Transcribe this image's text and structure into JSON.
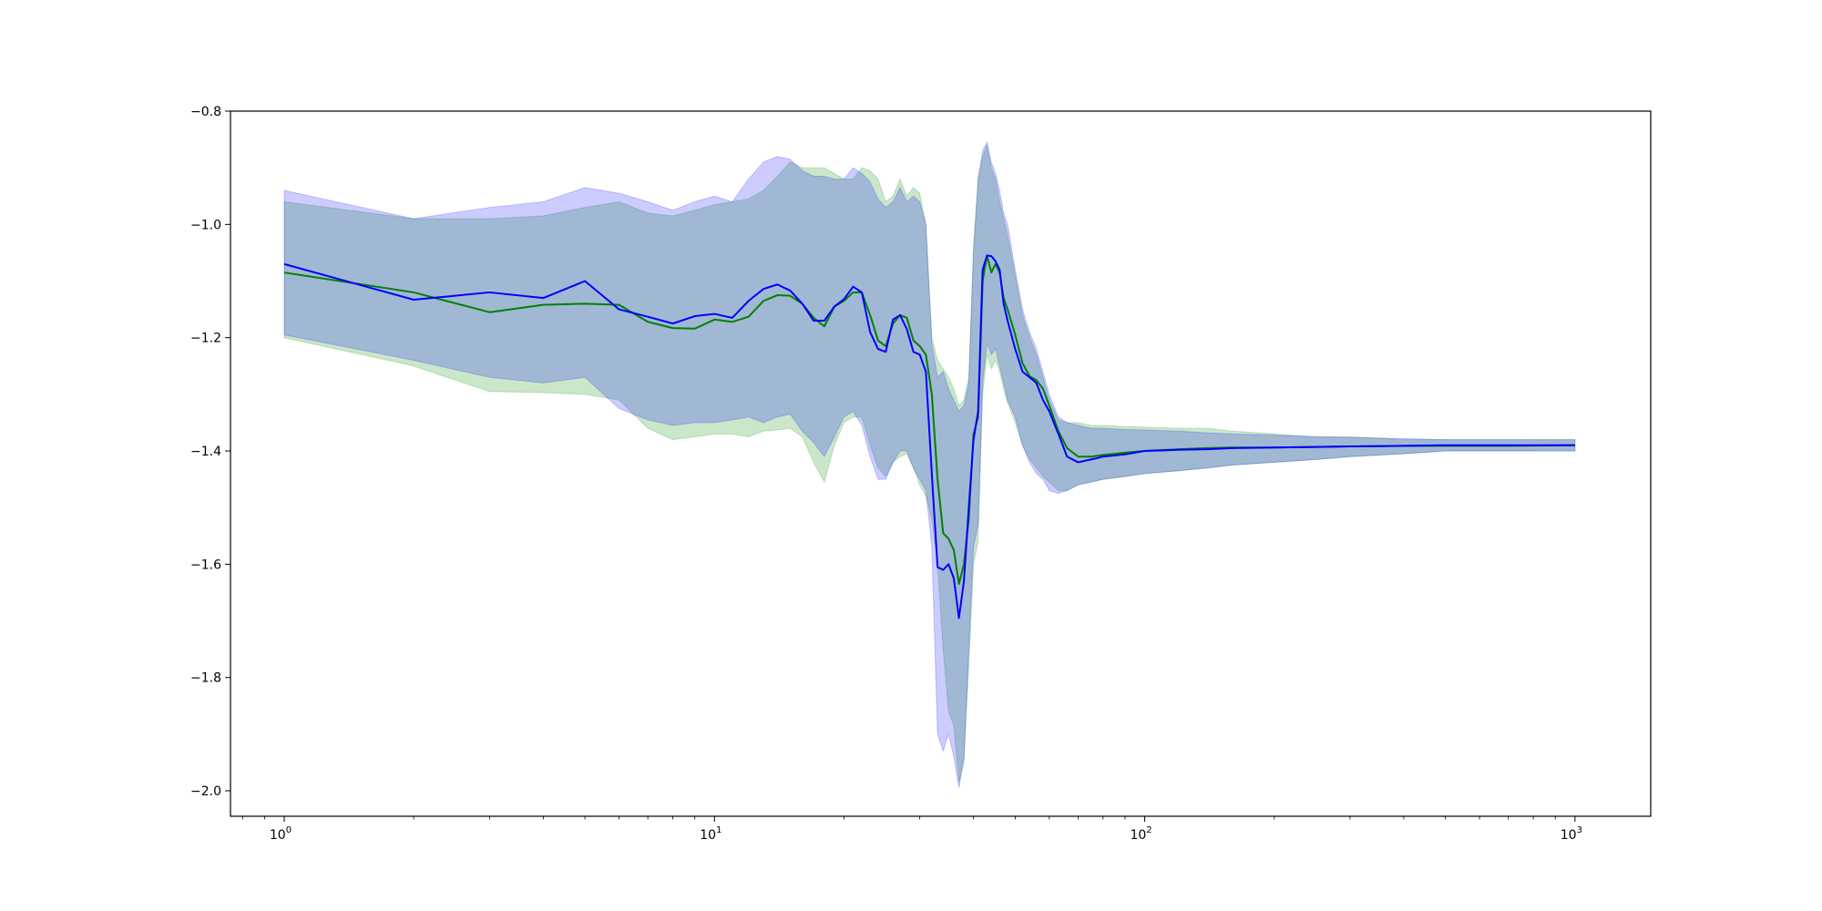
{
  "chart_data": {
    "type": "line",
    "title": "",
    "xlabel": "",
    "ylabel": "",
    "xscale": "log",
    "xlim": [
      0.75,
      1500
    ],
    "ylim": [
      -2.045,
      -0.8
    ],
    "grid": false,
    "legend": "none",
    "x_ticks": [
      {
        "value": 1,
        "base": "10",
        "exp": "0"
      },
      {
        "value": 10,
        "base": "10",
        "exp": "1"
      },
      {
        "value": 100,
        "base": "10",
        "exp": "2"
      },
      {
        "value": 1000,
        "base": "10",
        "exp": "3"
      }
    ],
    "y_ticks": [
      {
        "value": -0.8,
        "label": "−0.8"
      },
      {
        "value": -1.0,
        "label": "−1.0"
      },
      {
        "value": -1.2,
        "label": "−1.2"
      },
      {
        "value": -1.4,
        "label": "−1.4"
      },
      {
        "value": -1.6,
        "label": "−1.6"
      },
      {
        "value": -1.8,
        "label": "−1.8"
      },
      {
        "value": -2.0,
        "label": "−2.0"
      }
    ],
    "series": [
      {
        "color": "#008000",
        "band_color": "#2ca02c",
        "band_opacity": 0.25,
        "x": [
          1,
          2,
          3,
          4,
          5,
          6,
          7,
          8,
          9,
          10,
          11,
          12,
          13,
          14,
          15,
          16,
          17,
          18,
          19,
          20,
          21,
          22,
          23,
          24,
          25,
          26,
          27,
          28,
          29,
          30,
          31,
          32,
          33,
          34,
          35,
          36,
          37,
          38,
          39,
          40,
          41,
          42,
          43,
          44,
          45,
          46,
          47,
          48,
          50,
          52,
          54,
          56,
          58,
          60,
          63,
          66,
          70,
          75,
          80,
          90,
          100,
          120,
          140,
          160,
          200,
          250,
          300,
          400,
          500,
          700,
          1000
        ],
        "y": [
          -1.085,
          -1.12,
          -1.155,
          -1.142,
          -1.14,
          -1.142,
          -1.172,
          -1.183,
          -1.184,
          -1.168,
          -1.172,
          -1.163,
          -1.135,
          -1.125,
          -1.126,
          -1.14,
          -1.165,
          -1.18,
          -1.145,
          -1.135,
          -1.12,
          -1.12,
          -1.16,
          -1.205,
          -1.215,
          -1.175,
          -1.16,
          -1.165,
          -1.205,
          -1.215,
          -1.23,
          -1.3,
          -1.45,
          -1.545,
          -1.555,
          -1.575,
          -1.635,
          -1.6,
          -1.52,
          -1.37,
          -1.34,
          -1.1,
          -1.055,
          -1.085,
          -1.07,
          -1.085,
          -1.13,
          -1.15,
          -1.195,
          -1.245,
          -1.268,
          -1.275,
          -1.29,
          -1.32,
          -1.365,
          -1.395,
          -1.41,
          -1.41,
          -1.407,
          -1.403,
          -1.4,
          -1.397,
          -1.395,
          -1.394,
          -1.394,
          -1.393,
          -1.392,
          -1.391,
          -1.391,
          -1.391,
          -1.39
        ],
        "lower": [
          -1.2,
          -1.25,
          -1.295,
          -1.297,
          -1.3,
          -1.31,
          -1.36,
          -1.38,
          -1.375,
          -1.37,
          -1.37,
          -1.375,
          -1.365,
          -1.363,
          -1.36,
          -1.375,
          -1.42,
          -1.455,
          -1.39,
          -1.35,
          -1.34,
          -1.34,
          -1.39,
          -1.43,
          -1.445,
          -1.42,
          -1.41,
          -1.405,
          -1.43,
          -1.46,
          -1.48,
          -1.52,
          -1.6,
          -1.75,
          -1.86,
          -1.885,
          -1.985,
          -1.95,
          -1.78,
          -1.6,
          -1.56,
          -1.3,
          -1.23,
          -1.255,
          -1.24,
          -1.26,
          -1.29,
          -1.315,
          -1.35,
          -1.39,
          -1.415,
          -1.43,
          -1.445,
          -1.455,
          -1.47,
          -1.47,
          -1.46,
          -1.455,
          -1.45,
          -1.445,
          -1.44,
          -1.435,
          -1.43,
          -1.425,
          -1.42,
          -1.415,
          -1.41,
          -1.405,
          -1.4,
          -1.4,
          -1.4
        ],
        "upper": [
          -0.96,
          -0.99,
          -0.99,
          -0.985,
          -0.97,
          -0.96,
          -0.98,
          -0.985,
          -0.975,
          -0.965,
          -0.96,
          -0.955,
          -0.94,
          -0.915,
          -0.89,
          -0.9,
          -0.9,
          -0.9,
          -0.91,
          -0.92,
          -0.92,
          -0.9,
          -0.905,
          -0.92,
          -0.96,
          -0.95,
          -0.92,
          -0.95,
          -0.935,
          -0.945,
          -1.0,
          -1.2,
          -1.24,
          -1.255,
          -1.27,
          -1.29,
          -1.32,
          -1.31,
          -1.27,
          -1.04,
          -0.92,
          -0.88,
          -0.86,
          -0.9,
          -0.92,
          -0.96,
          -0.99,
          -1.02,
          -1.09,
          -1.16,
          -1.2,
          -1.23,
          -1.27,
          -1.31,
          -1.345,
          -1.35,
          -1.35,
          -1.355,
          -1.355,
          -1.357,
          -1.358,
          -1.36,
          -1.36,
          -1.365,
          -1.37,
          -1.375,
          -1.375,
          -1.38,
          -1.38,
          -1.38,
          -1.38
        ]
      },
      {
        "color": "#0000ff",
        "band_color": "#0000ff",
        "band_opacity": 0.2,
        "x": [
          1,
          2,
          3,
          4,
          5,
          6,
          7,
          8,
          9,
          10,
          11,
          12,
          13,
          14,
          15,
          16,
          17,
          18,
          19,
          20,
          21,
          22,
          23,
          24,
          25,
          26,
          27,
          28,
          29,
          30,
          31,
          32,
          33,
          34,
          35,
          36,
          37,
          38,
          39,
          40,
          41,
          42,
          43,
          44,
          45,
          46,
          47,
          48,
          50,
          52,
          54,
          56,
          58,
          60,
          63,
          66,
          70,
          75,
          80,
          90,
          100,
          120,
          140,
          160,
          200,
          250,
          300,
          400,
          500,
          700,
          1000
        ],
        "y": [
          -1.07,
          -1.133,
          -1.12,
          -1.13,
          -1.1,
          -1.15,
          -1.163,
          -1.175,
          -1.162,
          -1.158,
          -1.165,
          -1.135,
          -1.114,
          -1.106,
          -1.117,
          -1.14,
          -1.17,
          -1.17,
          -1.145,
          -1.132,
          -1.11,
          -1.12,
          -1.19,
          -1.22,
          -1.225,
          -1.168,
          -1.16,
          -1.185,
          -1.225,
          -1.23,
          -1.26,
          -1.44,
          -1.605,
          -1.61,
          -1.6,
          -1.625,
          -1.695,
          -1.63,
          -1.5,
          -1.38,
          -1.33,
          -1.08,
          -1.055,
          -1.056,
          -1.065,
          -1.08,
          -1.14,
          -1.17,
          -1.22,
          -1.26,
          -1.27,
          -1.28,
          -1.31,
          -1.33,
          -1.37,
          -1.41,
          -1.42,
          -1.415,
          -1.41,
          -1.406,
          -1.4,
          -1.398,
          -1.397,
          -1.395,
          -1.394,
          -1.393,
          -1.392,
          -1.391,
          -1.39,
          -1.39,
          -1.39
        ],
        "lower": [
          -1.195,
          -1.24,
          -1.27,
          -1.28,
          -1.27,
          -1.325,
          -1.345,
          -1.355,
          -1.35,
          -1.35,
          -1.345,
          -1.34,
          -1.35,
          -1.34,
          -1.335,
          -1.365,
          -1.385,
          -1.41,
          -1.375,
          -1.34,
          -1.33,
          -1.355,
          -1.41,
          -1.45,
          -1.45,
          -1.42,
          -1.4,
          -1.4,
          -1.43,
          -1.45,
          -1.47,
          -1.57,
          -1.9,
          -1.93,
          -1.9,
          -1.94,
          -1.995,
          -1.94,
          -1.75,
          -1.57,
          -1.53,
          -1.28,
          -1.21,
          -1.23,
          -1.22,
          -1.25,
          -1.28,
          -1.31,
          -1.34,
          -1.39,
          -1.42,
          -1.44,
          -1.45,
          -1.47,
          -1.475,
          -1.47,
          -1.46,
          -1.455,
          -1.45,
          -1.445,
          -1.44,
          -1.435,
          -1.43,
          -1.425,
          -1.42,
          -1.415,
          -1.41,
          -1.405,
          -1.4,
          -1.4,
          -1.4
        ],
        "upper": [
          -0.94,
          -0.99,
          -0.97,
          -0.96,
          -0.935,
          -0.945,
          -0.96,
          -0.975,
          -0.96,
          -0.95,
          -0.96,
          -0.92,
          -0.89,
          -0.88,
          -0.885,
          -0.905,
          -0.915,
          -0.915,
          -0.92,
          -0.92,
          -0.9,
          -0.91,
          -0.925,
          -0.955,
          -0.97,
          -0.96,
          -0.935,
          -0.96,
          -0.95,
          -0.96,
          -1.0,
          -1.21,
          -1.27,
          -1.26,
          -1.29,
          -1.31,
          -1.33,
          -1.32,
          -1.28,
          -1.05,
          -0.92,
          -0.87,
          -0.855,
          -0.89,
          -0.91,
          -0.94,
          -0.98,
          -1.0,
          -1.08,
          -1.15,
          -1.19,
          -1.22,
          -1.26,
          -1.3,
          -1.34,
          -1.35,
          -1.355,
          -1.36,
          -1.36,
          -1.362,
          -1.363,
          -1.365,
          -1.368,
          -1.37,
          -1.372,
          -1.375,
          -1.376,
          -1.378,
          -1.38,
          -1.38,
          -1.38
        ]
      }
    ]
  }
}
